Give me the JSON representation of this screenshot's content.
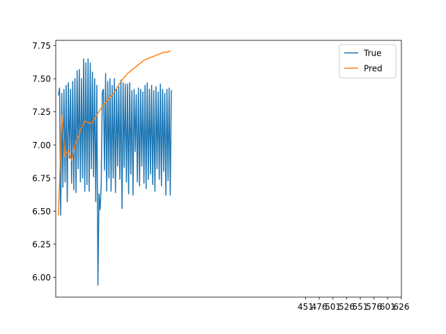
{
  "chart_data": {
    "type": "line",
    "title": "",
    "xlabel": "",
    "ylabel": "",
    "ylim": [
      5.85,
      7.79
    ],
    "xlim": [
      -5,
      626
    ],
    "yticks": [
      "6.00",
      "6.25",
      "6.50",
      "6.75",
      "7.00",
      "7.25",
      "7.50",
      "7.75"
    ],
    "ytick_values": [
      6.0,
      6.25,
      6.5,
      6.75,
      7.0,
      7.25,
      7.5,
      7.75
    ],
    "xticks": [
      "451",
      "476",
      "501",
      "526",
      "551",
      "576",
      "601",
      "626"
    ],
    "xtick_values": [
      451,
      476,
      501,
      526,
      551,
      576,
      601,
      626
    ],
    "legend": {
      "location": "top-right",
      "entries": [
        "True",
        "Pred"
      ]
    },
    "series": [
      {
        "name": "True",
        "color": "#1f77b4",
        "x": [
          0,
          2,
          4,
          6,
          8,
          10,
          12,
          14,
          16,
          18,
          20,
          22,
          24,
          26,
          28,
          30,
          32,
          34,
          36,
          38,
          40,
          42,
          44,
          46,
          48,
          50,
          52,
          54,
          56,
          58,
          60,
          62,
          64,
          66,
          68,
          70,
          72,
          74,
          76,
          78,
          80,
          82,
          84,
          86,
          88,
          90,
          92,
          94,
          96,
          98,
          100,
          102,
          104,
          106,
          108,
          110,
          112,
          114,
          116,
          118,
          120,
          122,
          124,
          126,
          128,
          130,
          132,
          134,
          136,
          138,
          140,
          142,
          144,
          146,
          148,
          150,
          152,
          154,
          156,
          158,
          160,
          162,
          164,
          166,
          168,
          170,
          172,
          174,
          176,
          178,
          180,
          182,
          184,
          186,
          188,
          190,
          192,
          194,
          196,
          198,
          200,
          202,
          204,
          206
        ],
        "values": [
          7.38,
          7.43,
          6.47,
          7.39,
          6.68,
          7.42,
          6.72,
          7.45,
          6.57,
          7.47,
          6.9,
          7.42,
          6.71,
          7.48,
          6.66,
          7.5,
          6.64,
          7.56,
          6.82,
          7.57,
          6.72,
          7.5,
          6.75,
          7.65,
          6.65,
          7.62,
          6.7,
          7.65,
          6.65,
          7.62,
          6.82,
          7.55,
          6.76,
          7.5,
          6.57,
          7.45,
          5.94,
          6.63,
          6.51,
          6.7,
          7.4,
          7.42,
          6.81,
          7.54,
          6.65,
          7.48,
          6.75,
          7.5,
          6.65,
          7.45,
          6.75,
          7.5,
          6.64,
          7.42,
          6.84,
          7.44,
          6.74,
          7.49,
          6.52,
          7.47,
          6.83,
          7.46,
          6.72,
          7.46,
          6.63,
          7.47,
          6.78,
          7.41,
          6.62,
          7.42,
          6.95,
          7.38,
          6.72,
          7.43,
          6.69,
          7.42,
          6.84,
          7.4,
          6.71,
          7.45,
          6.67,
          7.47,
          6.74,
          7.42,
          6.78,
          7.45,
          6.7,
          7.41,
          6.65,
          7.44,
          6.82,
          7.4,
          6.74,
          7.46,
          6.69,
          7.42,
          6.8,
          7.39,
          6.62,
          7.42,
          6.73,
          7.43,
          6.62,
          7.41
        ]
      },
      {
        "name": "Pred",
        "color": "#ff7f0e",
        "x": [
          0,
          6,
          12,
          18,
          24,
          30,
          36,
          42,
          48,
          54,
          60,
          66,
          72,
          78,
          84,
          90,
          96,
          102,
          108,
          114,
          120,
          126,
          132,
          138,
          144,
          150,
          156,
          162,
          168,
          174,
          180,
          186,
          192,
          198,
          204
        ],
        "values": [
          6.47,
          7.23,
          6.91,
          6.96,
          6.88,
          7.0,
          7.06,
          7.13,
          7.18,
          7.17,
          7.16,
          7.2,
          7.24,
          7.28,
          7.31,
          7.34,
          7.37,
          7.4,
          7.44,
          7.48,
          7.51,
          7.54,
          7.56,
          7.58,
          7.6,
          7.62,
          7.64,
          7.65,
          7.66,
          7.67,
          7.68,
          7.69,
          7.7,
          7.7,
          7.71
        ]
      }
    ]
  }
}
